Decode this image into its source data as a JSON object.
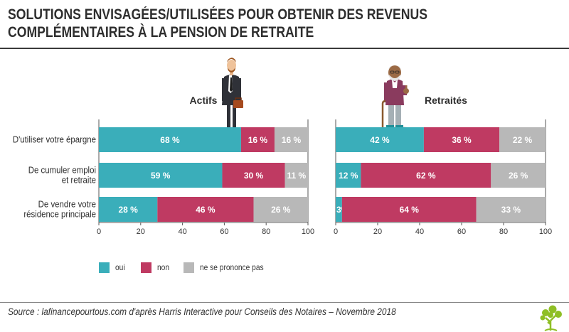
{
  "title_line1": "SOLUTIONS ENVISAGÉES/UTILISÉES POUR OBTENIR DES REVENUS",
  "title_line2": "COMPLÉMENTAIRES À LA PENSION DE RETRAITE",
  "legend": [
    {
      "label": "oui",
      "color": "#3aaeba"
    },
    {
      "label": "non",
      "color": "#bf3a62"
    },
    {
      "label": "ne se prononce pas",
      "color": "#b8b8b8"
    }
  ],
  "source": "Source : lafinancepourtous.com d'après Harris Interactive pour Conseils des Notaires – Novembre 2018",
  "chart_data": [
    {
      "type": "bar",
      "orientation": "horizontal",
      "stacked": true,
      "title": "Actifs",
      "categories": [
        [
          "D'utiliser votre épargne"
        ],
        [
          "De cumuler emploi",
          "et retraite"
        ],
        [
          "De vendre votre",
          "résidence principale"
        ]
      ],
      "series": [
        {
          "name": "oui",
          "color": "#3aaeba",
          "values": [
            68,
            59,
            28
          ],
          "labels": [
            "68 %",
            "59 %",
            "28 %"
          ]
        },
        {
          "name": "non",
          "color": "#bf3a62",
          "values": [
            16,
            30,
            46
          ],
          "labels": [
            "16 %",
            "30 %",
            "46 %"
          ]
        },
        {
          "name": "ne se prononce pas",
          "color": "#b8b8b8",
          "values": [
            16,
            11,
            26
          ],
          "labels": [
            "16 %",
            "11 %",
            "26 %"
          ]
        }
      ],
      "xlim": [
        0,
        100
      ],
      "xticks": [
        "0",
        "20",
        "40",
        "60",
        "80",
        "100"
      ]
    },
    {
      "type": "bar",
      "orientation": "horizontal",
      "stacked": true,
      "title": "Retraités",
      "categories": [
        [
          "D'utiliser votre épargne"
        ],
        [
          "De cumuler emploi",
          "et retraite"
        ],
        [
          "De vendre votre",
          "résidence principale"
        ]
      ],
      "series": [
        {
          "name": "oui",
          "color": "#3aaeba",
          "values": [
            42,
            12,
            3
          ],
          "labels": [
            "42 %",
            "12 %",
            "3%"
          ]
        },
        {
          "name": "non",
          "color": "#bf3a62",
          "values": [
            36,
            62,
            64
          ],
          "labels": [
            "36 %",
            "62 %",
            "64 %"
          ]
        },
        {
          "name": "ne se prononce pas",
          "color": "#b8b8b8",
          "values": [
            22,
            26,
            33
          ],
          "labels": [
            "22 %",
            "26 %",
            "33 %"
          ]
        }
      ],
      "xlim": [
        0,
        100
      ],
      "xticks": [
        "0",
        "20",
        "40",
        "60",
        "80",
        "100"
      ]
    }
  ]
}
